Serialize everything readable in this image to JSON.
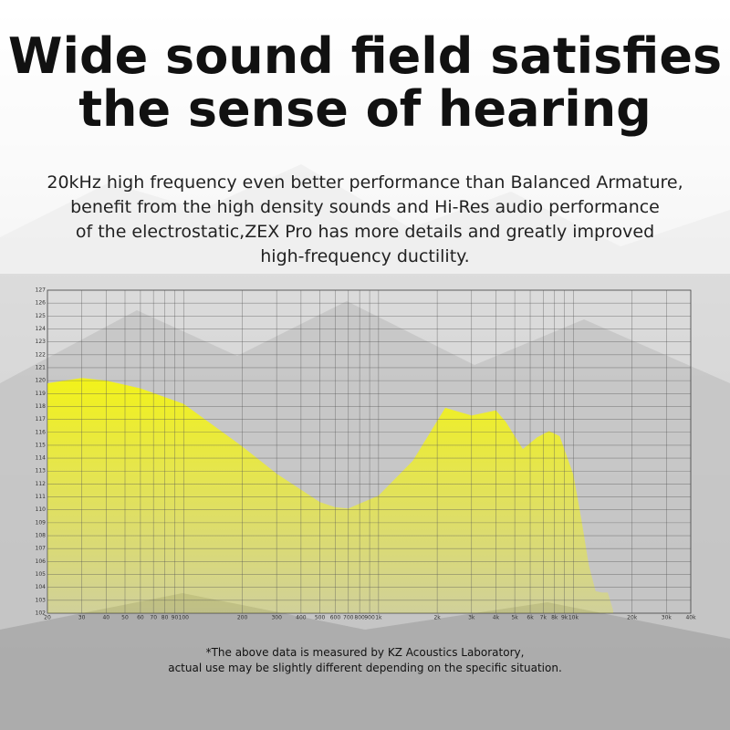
{
  "chart_data": {
    "type": "area",
    "title": [
      "Wide sound field satisfies",
      "the sense of hearing"
    ],
    "subtitle": [
      "20kHz high frequency even better performance than Balanced Armature,",
      "benefit from the high density sounds and Hi-Res audio performance",
      "of the electrostatic,ZEX Pro has more details and greatly improved",
      "high-frequency ductility."
    ],
    "note": [
      "*The above data is measured by KZ Acoustics Laboratory,",
      "actual use may be slightly different depending on the specific situation."
    ],
    "x": [
      20,
      30,
      40,
      60,
      100,
      200,
      300,
      500,
      600,
      700,
      1000,
      1500,
      2200,
      3000,
      4000,
      4500,
      5500,
      6500,
      7500,
      8500,
      10000,
      11000,
      12000,
      13000,
      14000,
      15000,
      16000
    ],
    "values": [
      119.8,
      120.2,
      120.0,
      119.4,
      118.2,
      114.9,
      112.8,
      110.6,
      110.2,
      110.1,
      111.1,
      113.8,
      117.9,
      117.3,
      117.7,
      116.8,
      114.7,
      115.6,
      116.1,
      115.7,
      112.7,
      109.2,
      105.7,
      103.7,
      103.6,
      103.6,
      102.2
    ],
    "color": "#f2f21a",
    "xlog": true,
    "grid": true,
    "xlim": [
      20,
      40000
    ],
    "ylim": [
      102,
      127
    ],
    "xticks": [
      20,
      30,
      40,
      50,
      60,
      70,
      80,
      90,
      100,
      200,
      300,
      400,
      500,
      600,
      700,
      800,
      900,
      {
        "value": 1000,
        "label": "1k"
      },
      {
        "value": 2000,
        "label": "2k"
      },
      {
        "value": 3000,
        "label": "3k"
      },
      {
        "value": 4000,
        "label": "4k"
      },
      {
        "value": 5000,
        "label": "5k"
      },
      {
        "value": 6000,
        "label": "6k"
      },
      {
        "value": 7000,
        "label": "7k"
      },
      {
        "value": 8000,
        "label": "8k"
      },
      {
        "value": 9000,
        "label": "9k"
      },
      {
        "value": 10000,
        "label": "10k"
      },
      {
        "value": 20000,
        "label": "20k"
      },
      {
        "value": 30000,
        "label": "30k"
      },
      {
        "value": 40000,
        "label": "40k"
      }
    ],
    "yticks": [
      102,
      103,
      104,
      105,
      106,
      107,
      108,
      109,
      110,
      111,
      112,
      113,
      114,
      115,
      116,
      117,
      118,
      119,
      120,
      121,
      122,
      123,
      124,
      125,
      126,
      127
    ]
  }
}
